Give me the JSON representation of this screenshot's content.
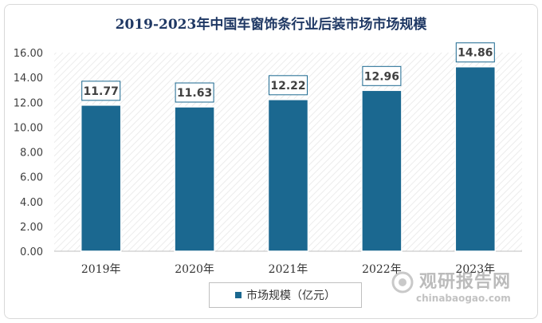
{
  "chart_data": {
    "type": "bar",
    "title": "2019-2023年中国车窗饰条行业后装市场市场规模",
    "categories": [
      "2019年",
      "2020年",
      "2021年",
      "2022年",
      "2023年"
    ],
    "series": [
      {
        "name": "市场规模（亿元）",
        "values": [
          11.77,
          11.63,
          12.22,
          12.96,
          14.86
        ]
      }
    ],
    "value_labels": [
      "11.77",
      "11.63",
      "12.22",
      "12.96",
      "14.86"
    ],
    "yticks": [
      "0.00",
      "2.00",
      "4.00",
      "6.00",
      "8.00",
      "10.00",
      "12.00",
      "14.00",
      "16.00"
    ],
    "ylim": [
      0,
      16
    ],
    "xlabel": "",
    "ylabel": "",
    "grid": true,
    "legend_position": "bottom"
  },
  "colors": {
    "bar": "#1b6890",
    "title": "#1f3864",
    "label_border": "#1b6890"
  },
  "watermark": {
    "cn": "观研报告网",
    "en": "chinabaogao.com"
  }
}
